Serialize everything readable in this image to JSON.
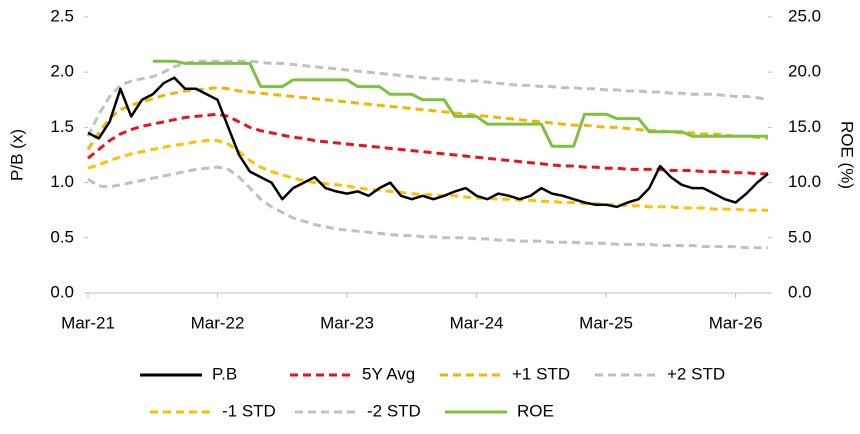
{
  "chart_data": {
    "type": "line",
    "categories": [
      "Mar-21",
      null,
      null,
      null,
      null,
      null,
      null,
      null,
      null,
      null,
      null,
      null,
      "Mar-22",
      null,
      null,
      null,
      null,
      null,
      null,
      null,
      null,
      null,
      null,
      null,
      "Mar-23",
      null,
      null,
      null,
      null,
      null,
      null,
      null,
      null,
      null,
      null,
      null,
      "Mar-24",
      null,
      null,
      null,
      null,
      null,
      null,
      null,
      null,
      null,
      null,
      null,
      "Mar-25",
      null,
      null,
      null,
      null,
      null,
      null,
      null,
      null,
      null,
      null,
      null,
      "Mar-26",
      null,
      null,
      null
    ],
    "ylabel": "P/B (x)",
    "y2label": "ROE (%)",
    "ylim": [
      0,
      2.5
    ],
    "yticks": [
      {
        "value": 0,
        "label": "0.0"
      },
      0.5,
      {
        "value": 1,
        "label": "1.0"
      },
      1.5,
      {
        "value": 2,
        "label": "2.0"
      },
      2.5
    ],
    "y2lim": [
      0,
      25
    ],
    "y2ticks": [
      {
        "value": 0,
        "label": "0.0"
      },
      {
        "value": 5,
        "label": "5.0"
      },
      {
        "value": 10,
        "label": "10.0"
      },
      {
        "value": 15,
        "label": "15.0"
      },
      {
        "value": 20,
        "label": "20.0"
      },
      {
        "value": 25,
        "label": "25.0"
      }
    ],
    "series": [
      {
        "name": "P.B",
        "color": "#000000",
        "dashed": false,
        "values": [
          1.45,
          1.4,
          1.55,
          1.85,
          1.6,
          1.75,
          1.8,
          1.9,
          1.95,
          1.85,
          1.85,
          1.8,
          1.75,
          1.5,
          1.25,
          1.1,
          1.05,
          1.0,
          0.85,
          0.95,
          1.0,
          1.05,
          0.95,
          0.92,
          0.9,
          0.92,
          0.88,
          0.95,
          1.0,
          0.88,
          0.85,
          0.88,
          0.85,
          0.88,
          0.92,
          0.95,
          0.88,
          0.85,
          0.9,
          0.88,
          0.85,
          0.88,
          0.95,
          0.9,
          0.88,
          0.85,
          0.82,
          0.8,
          0.8,
          0.78,
          0.82,
          0.85,
          0.95,
          1.15,
          1.05,
          0.98,
          0.95,
          0.95,
          0.9,
          0.85,
          0.82,
          0.9,
          1.0,
          1.08
        ]
      },
      {
        "name": "5Y Avg",
        "color": "#e8141b",
        "dashed": true,
        "values": [
          1.22,
          1.3,
          1.38,
          1.44,
          1.48,
          1.51,
          1.53,
          1.55,
          1.57,
          1.59,
          1.6,
          1.61,
          1.62,
          1.6,
          1.55,
          1.5,
          1.47,
          1.45,
          1.43,
          1.41,
          1.4,
          1.38,
          1.37,
          1.36,
          1.35,
          1.34,
          1.33,
          1.32,
          1.31,
          1.3,
          1.29,
          1.28,
          1.27,
          1.26,
          1.25,
          1.24,
          1.23,
          1.22,
          1.21,
          1.2,
          1.19,
          1.18,
          1.17,
          1.16,
          1.15,
          1.15,
          1.14,
          1.14,
          1.13,
          1.13,
          1.12,
          1.12,
          1.12,
          1.12,
          1.11,
          1.11,
          1.11,
          1.1,
          1.1,
          1.1,
          1.09,
          1.09,
          1.08,
          1.08
        ]
      },
      {
        "name": "+1 STD",
        "color": "#f2b600",
        "dashed": true,
        "values": [
          1.3,
          1.45,
          1.58,
          1.66,
          1.7,
          1.73,
          1.76,
          1.79,
          1.81,
          1.83,
          1.84,
          1.85,
          1.86,
          1.85,
          1.83,
          1.82,
          1.81,
          1.8,
          1.79,
          1.78,
          1.77,
          1.76,
          1.75,
          1.74,
          1.73,
          1.72,
          1.71,
          1.7,
          1.69,
          1.68,
          1.67,
          1.66,
          1.65,
          1.64,
          1.63,
          1.62,
          1.61,
          1.6,
          1.59,
          1.58,
          1.57,
          1.56,
          1.55,
          1.54,
          1.53,
          1.52,
          1.52,
          1.51,
          1.5,
          1.5,
          1.49,
          1.48,
          1.47,
          1.47,
          1.46,
          1.45,
          1.45,
          1.44,
          1.44,
          1.43,
          1.42,
          1.42,
          1.41,
          1.4
        ]
      },
      {
        "name": "+2 STD",
        "color": "#c0c0c0",
        "dashed": true,
        "values": [
          1.42,
          1.62,
          1.78,
          1.88,
          1.92,
          1.94,
          1.96,
          2.0,
          2.05,
          2.08,
          2.1,
          2.1,
          2.1,
          2.1,
          2.1,
          2.1,
          2.09,
          2.08,
          2.08,
          2.07,
          2.06,
          2.05,
          2.04,
          2.03,
          2.02,
          2.01,
          2.0,
          1.99,
          1.98,
          1.97,
          1.96,
          1.95,
          1.94,
          1.94,
          1.93,
          1.92,
          1.92,
          1.91,
          1.9,
          1.89,
          1.88,
          1.88,
          1.87,
          1.87,
          1.86,
          1.86,
          1.85,
          1.85,
          1.84,
          1.84,
          1.83,
          1.83,
          1.82,
          1.82,
          1.81,
          1.81,
          1.8,
          1.8,
          1.8,
          1.79,
          1.78,
          1.78,
          1.77,
          1.75
        ]
      },
      {
        "name": "-1 STD",
        "color": "#ffc000",
        "dashed": true,
        "values": [
          1.13,
          1.16,
          1.2,
          1.23,
          1.26,
          1.28,
          1.3,
          1.32,
          1.34,
          1.35,
          1.37,
          1.38,
          1.38,
          1.35,
          1.28,
          1.2,
          1.14,
          1.1,
          1.07,
          1.04,
          1.02,
          1.0,
          0.99,
          0.98,
          0.97,
          0.95,
          0.94,
          0.93,
          0.92,
          0.91,
          0.9,
          0.89,
          0.89,
          0.88,
          0.88,
          0.87,
          0.86,
          0.86,
          0.85,
          0.85,
          0.84,
          0.84,
          0.83,
          0.83,
          0.82,
          0.82,
          0.81,
          0.81,
          0.8,
          0.8,
          0.79,
          0.79,
          0.78,
          0.78,
          0.78,
          0.77,
          0.77,
          0.77,
          0.76,
          0.76,
          0.76,
          0.75,
          0.75,
          0.75
        ]
      },
      {
        "name": "-2 STD",
        "color": "#c0c0c0",
        "dashed": true,
        "values": [
          1.03,
          0.97,
          0.96,
          0.98,
          1.0,
          1.02,
          1.04,
          1.06,
          1.08,
          1.1,
          1.12,
          1.13,
          1.14,
          1.12,
          1.05,
          0.95,
          0.85,
          0.78,
          0.73,
          0.68,
          0.65,
          0.62,
          0.6,
          0.58,
          0.57,
          0.56,
          0.55,
          0.54,
          0.53,
          0.52,
          0.52,
          0.51,
          0.51,
          0.5,
          0.5,
          0.5,
          0.49,
          0.49,
          0.48,
          0.48,
          0.47,
          0.47,
          0.47,
          0.46,
          0.46,
          0.46,
          0.45,
          0.45,
          0.45,
          0.44,
          0.44,
          0.44,
          0.44,
          0.43,
          0.43,
          0.43,
          0.43,
          0.42,
          0.42,
          0.42,
          0.42,
          0.41,
          0.41,
          0.41
        ]
      },
      {
        "name": "ROE",
        "color": "#7dc142",
        "dashed": false,
        "axis": "y2",
        "values": [
          null,
          null,
          null,
          null,
          null,
          null,
          21.0,
          21.0,
          21.0,
          20.8,
          20.8,
          20.8,
          20.8,
          20.8,
          20.8,
          20.8,
          18.7,
          18.7,
          18.7,
          19.3,
          19.3,
          19.3,
          19.3,
          19.3,
          19.3,
          18.7,
          18.7,
          18.7,
          18.0,
          18.0,
          18.0,
          17.5,
          17.5,
          17.5,
          16.0,
          16.0,
          16.0,
          15.3,
          15.3,
          15.3,
          15.3,
          15.3,
          15.3,
          13.3,
          13.3,
          13.3,
          16.2,
          16.2,
          16.2,
          15.8,
          15.8,
          15.8,
          14.6,
          14.6,
          14.6,
          14.6,
          14.2,
          14.2,
          14.2,
          14.2,
          14.2,
          14.2,
          14.2,
          14.2
        ]
      }
    ]
  }
}
